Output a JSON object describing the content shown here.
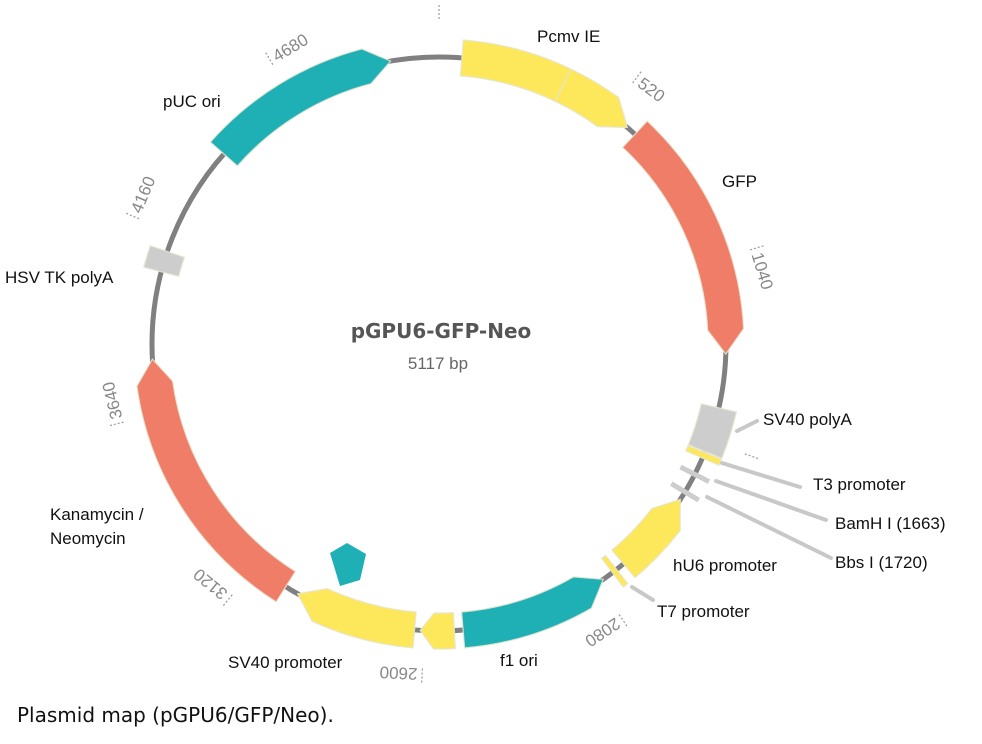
{
  "plasmid": {
    "name": "pGPU6-GFP-Neo",
    "size_label": "5117 bp",
    "length_bp": 5117,
    "backbone_color": "#808080"
  },
  "colors": {
    "yellow": "#fde75a",
    "teal": "#1fb0b6",
    "salmon": "#f07d68",
    "gray": "#cdcdcd"
  },
  "features": [
    {
      "label": "Pcmv IE",
      "start": 65,
      "end": 364,
      "color": "yellow",
      "direction": 0
    },
    {
      "label": "",
      "start": 364,
      "end": 583,
      "color": "yellow",
      "direction": 1
    },
    {
      "label": "GFP",
      "start": 612,
      "end": 1308,
      "color": "salmon",
      "direction": 1
    },
    {
      "label": "SV40 polyA",
      "start": 1462,
      "end": 1592,
      "color": "gray",
      "direction": 0
    },
    {
      "label": "T3 promoter",
      "start": 1595,
      "end": 1612,
      "color": "yellow",
      "direction": 0
    },
    {
      "label": "hU6 promoter",
      "start": 1745,
      "end": 1990,
      "color": "yellow",
      "direction": -1
    },
    {
      "label": "T7 promoter",
      "start": 2015,
      "end": 2030,
      "color": "yellow",
      "direction": 0
    },
    {
      "label": "f1 ori",
      "start": 2062,
      "end": 2490,
      "color": "teal",
      "direction": -1
    },
    {
      "label": "",
      "start": 2515,
      "end": 2612,
      "color": "yellow",
      "direction": 1
    },
    {
      "label": "SV40 promoter",
      "start": 2628,
      "end": 2978,
      "color": "yellow",
      "direction": 1
    },
    {
      "label": "Kanamycin / Neomycin",
      "start": 3017,
      "end": 3795,
      "color": "salmon",
      "direction": 1
    },
    {
      "label": "HSV TK polyA",
      "start": 4045,
      "end": 4105,
      "color": "gray",
      "direction": 0
    },
    {
      "label": "pUC ori",
      "start": 4427,
      "end": 4979,
      "color": "teal",
      "direction": 1
    }
  ],
  "sites": [
    {
      "label": "BamH I (1663)",
      "position": 1663
    },
    {
      "label": "Bbs I (1720)",
      "position": 1720
    }
  ],
  "labels": {
    "pcmv": "Pcmv IE",
    "gfp": "GFP",
    "sv40_polya": "SV40 polyA",
    "t3": "T3 promoter",
    "bamh": "BamH I (1663)",
    "bbs": "Bbs I (1720)",
    "hu6": "hU6 promoter",
    "t7": "T7 promoter",
    "f1": "f1 ori",
    "sv40_promoter": "SV40 promoter",
    "kan_line1": "Kanamycin /",
    "kan_line2": "Neomycin",
    "hsv": "HSV TK polyA",
    "puc": "pUC ori"
  },
  "ticks": [
    0,
    520,
    1040,
    1560,
    2080,
    2600,
    3120,
    3640,
    4160,
    4680
  ],
  "tick_labels": [
    "520",
    "1040",
    "2080",
    "2600",
    "3120",
    "3640",
    "4160",
    "4680"
  ],
  "caption": "Plasmid map (pGPU6/GFP/Neo)."
}
